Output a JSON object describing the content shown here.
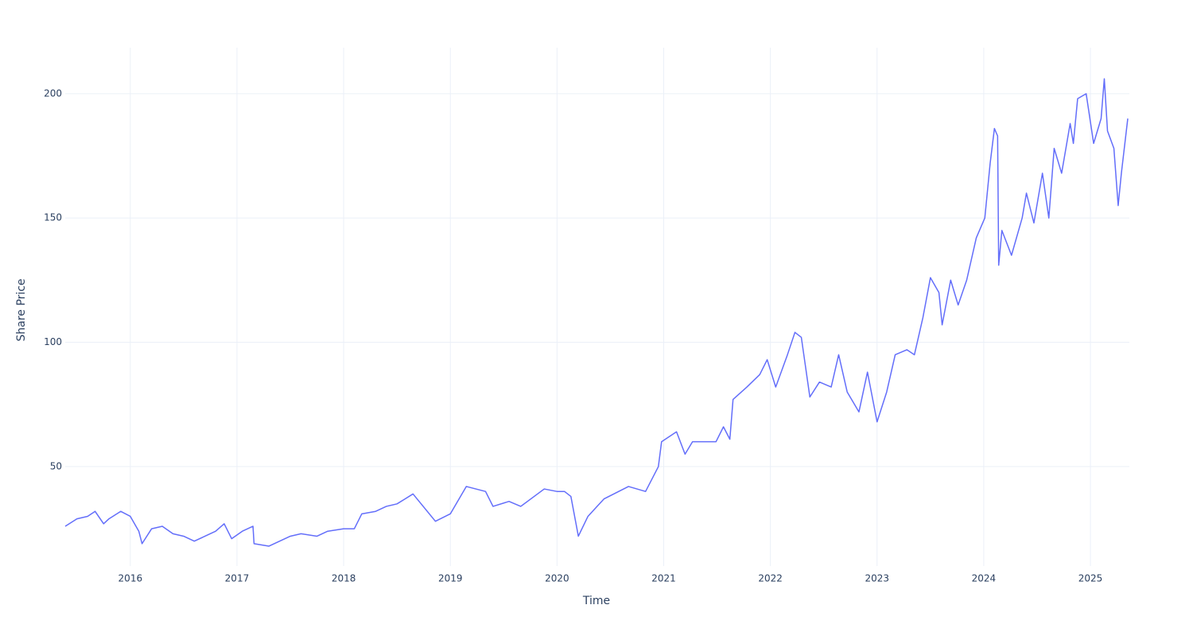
{
  "chart_data": {
    "type": "line",
    "x_label": "Time",
    "y_label": "Share Price",
    "color": "#636efa",
    "grid": true,
    "xlim": [
      2015.39,
      2025.365
    ],
    "ylim": [
      10,
      218.5
    ],
    "xticks": [
      2016,
      2017,
      2018,
      2019,
      2020,
      2021,
      2022,
      2023,
      2024,
      2025
    ],
    "yticks": [
      50,
      100,
      150,
      200
    ],
    "x": [
      2015.39,
      2015.5,
      2015.6,
      2015.67,
      2015.75,
      2015.8,
      2015.91,
      2016.0,
      2016.08,
      2016.11,
      2016.2,
      2016.3,
      2016.4,
      2016.5,
      2016.6,
      2016.7,
      2016.8,
      2016.88,
      2016.95,
      2017.05,
      2017.15,
      2017.16,
      2017.3,
      2017.4,
      2017.5,
      2017.6,
      2017.75,
      2017.85,
      2018.0,
      2018.1,
      2018.17,
      2018.3,
      2018.4,
      2018.5,
      2018.65,
      2018.86,
      2019.0,
      2019.15,
      2019.33,
      2019.4,
      2019.55,
      2019.66,
      2019.88,
      2020.0,
      2020.07,
      2020.13,
      2020.2,
      2020.29,
      2020.44,
      2020.67,
      2020.83,
      2020.95,
      2020.98,
      2021.12,
      2021.2,
      2021.27,
      2021.49,
      2021.56,
      2021.62,
      2021.65,
      2021.78,
      2021.9,
      2021.97,
      2022.05,
      2022.16,
      2022.23,
      2022.29,
      2022.37,
      2022.46,
      2022.57,
      2022.64,
      2022.72,
      2022.83,
      2022.91,
      2023.0,
      2023.09,
      2023.17,
      2023.28,
      2023.35,
      2023.43,
      2023.5,
      2023.58,
      2023.61,
      2023.69,
      2023.76,
      2023.84,
      2023.93,
      2024.01,
      2024.06,
      2024.1,
      2024.13,
      2024.14,
      2024.17,
      2024.26,
      2024.36,
      2024.4,
      2024.47,
      2024.55,
      2024.61,
      2024.66,
      2024.73,
      2024.81,
      2024.84,
      2024.88,
      2024.96,
      2025.03,
      2025.1,
      2025.13,
      2025.16,
      2025.22,
      2025.26,
      2025.29,
      2025.35
    ],
    "values": [
      26,
      29,
      30,
      32,
      27,
      29,
      32,
      30,
      24,
      19,
      25,
      26,
      23,
      22,
      20,
      22,
      24,
      27,
      21,
      24,
      26,
      19,
      18,
      20,
      22,
      23,
      22,
      24,
      25,
      25,
      31,
      32,
      34,
      35,
      39,
      28,
      31,
      42,
      40,
      34,
      36,
      34,
      41,
      40,
      40,
      38,
      22,
      30,
      37,
      42,
      40,
      50,
      60,
      64,
      55,
      60,
      60,
      66,
      61,
      77,
      82,
      87,
      93,
      82,
      95,
      104,
      102,
      78,
      84,
      82,
      95,
      80,
      72,
      88,
      68,
      80,
      95,
      97,
      95,
      110,
      126,
      120,
      107,
      125,
      115,
      125,
      142,
      150,
      172,
      186,
      183,
      131,
      145,
      135,
      150,
      160,
      148,
      168,
      150,
      178,
      168,
      188,
      180,
      198,
      200,
      180,
      190,
      206,
      185,
      178,
      155,
      168,
      190
    ]
  }
}
